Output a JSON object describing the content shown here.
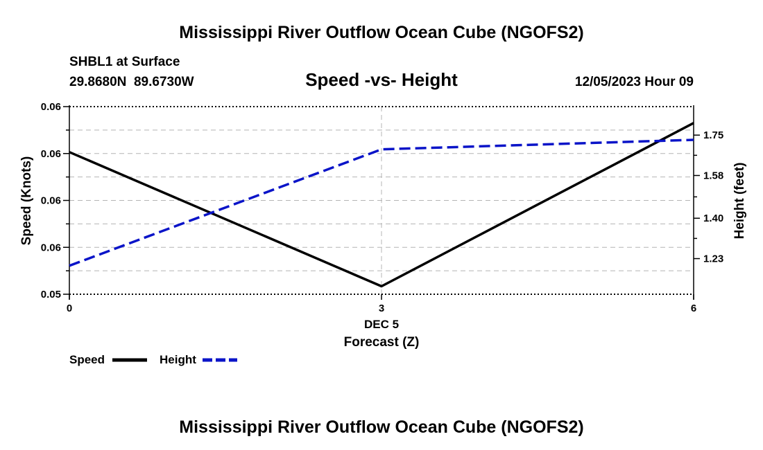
{
  "page": {
    "title_top": "Mississippi River Outflow Ocean Cube (NGOFS2)",
    "title_bottom": "Mississippi River Outflow Ocean Cube (NGOFS2)"
  },
  "header": {
    "station": "SHBL1 at Surface",
    "coords": "29.8680N  89.6730W",
    "chart_title": "Speed -vs- Height",
    "datetime": "12/05/2023 Hour 09"
  },
  "legend": {
    "speed_label": "Speed",
    "height_label": "Height"
  },
  "chart_data": {
    "type": "line",
    "title": "Speed -vs- Height",
    "x": [
      0,
      3,
      6
    ],
    "x_ticks": [
      0,
      3,
      6
    ],
    "x_tick_labels": [
      "0",
      "3",
      "6"
    ],
    "x_sublabel": "DEC 5",
    "xlabel": "Forecast (Z)",
    "xlim": [
      0,
      6
    ],
    "ylabel_left": "Speed (Knots)",
    "ylabel_right": "Height (feet)",
    "left_axis": {
      "ylim": [
        0.0,
        4.0
      ],
      "ticks": [
        0,
        1,
        2,
        3,
        4
      ],
      "tick_labels": [
        "0.05",
        "0.06",
        "0.06",
        "0.06",
        "0.06"
      ]
    },
    "right_axis": {
      "ylim": [
        1.08,
        1.87
      ],
      "ticks": [
        1.23,
        1.4,
        1.58,
        1.75
      ],
      "tick_labels": [
        "1.23",
        "1.40",
        "1.58",
        "1.75"
      ]
    },
    "grid": true,
    "series": [
      {
        "name": "Speed",
        "axis": "left",
        "color": "#000000",
        "dash": "solid",
        "values": [
          3.03,
          0.17,
          3.65
        ]
      },
      {
        "name": "Height",
        "axis": "right",
        "color": "#0a14c8",
        "dash": "dashed",
        "values": [
          1.2,
          1.69,
          1.73
        ]
      }
    ]
  }
}
